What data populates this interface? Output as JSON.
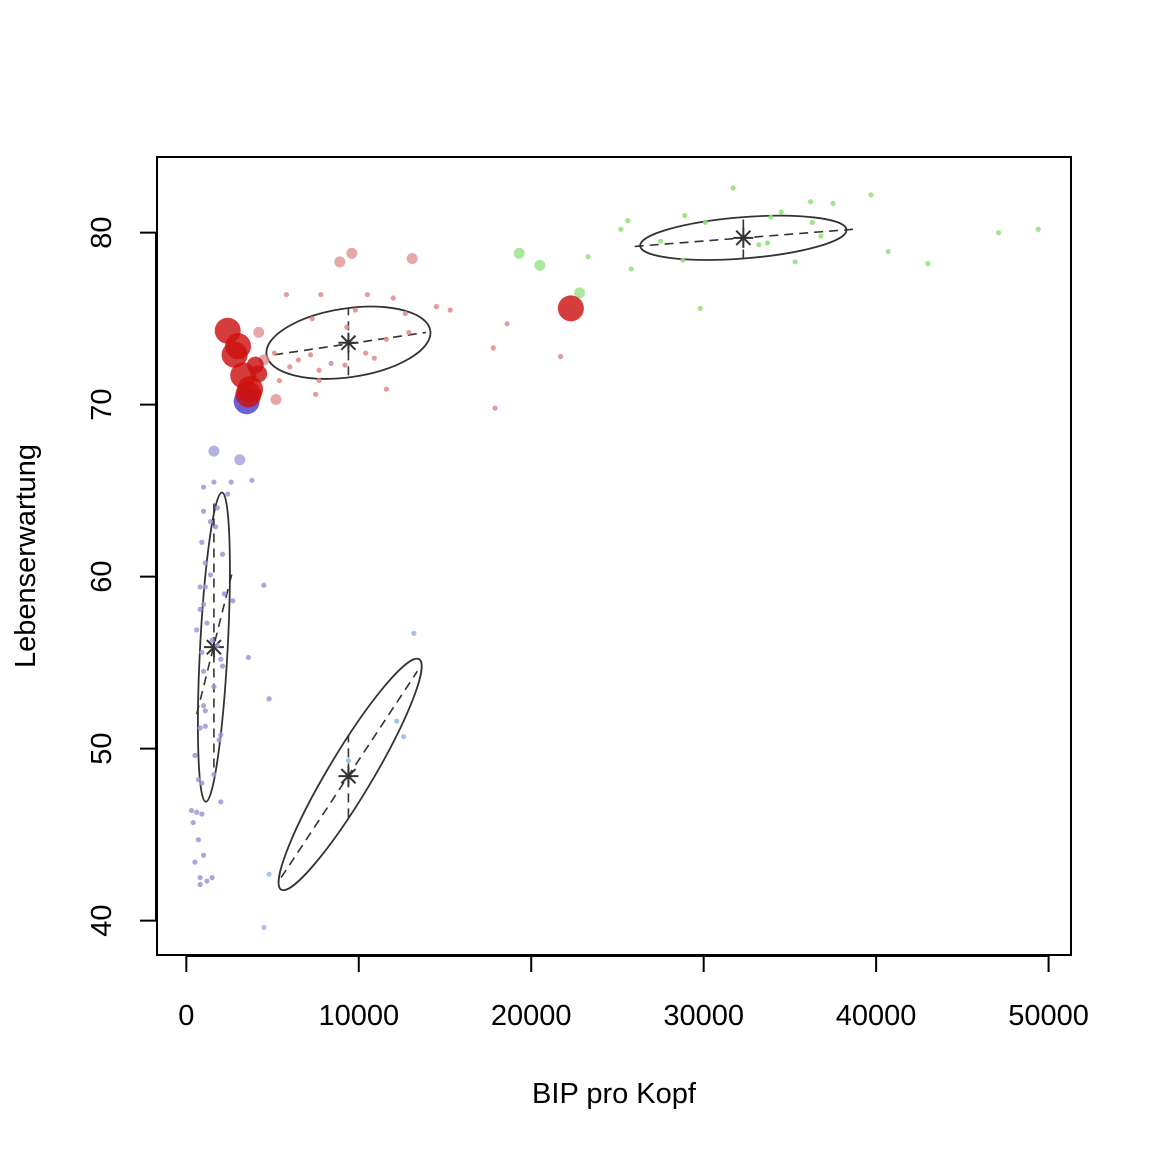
{
  "chart_data": {
    "type": "scatter",
    "title": "",
    "xlabel": "BIP pro Kopf",
    "ylabel": "Lebenserwartung",
    "xlim": [
      -1700,
      51300
    ],
    "ylim": [
      38,
      84.4
    ],
    "x_ticks": [
      0,
      10000,
      20000,
      30000,
      40000,
      50000
    ],
    "x_tick_labels": [
      "0",
      "10000",
      "20000",
      "30000",
      "40000",
      "50000"
    ],
    "y_ticks": [
      40,
      50,
      60,
      70,
      80
    ],
    "y_tick_labels": [
      "40",
      "50",
      "60",
      "70",
      "80"
    ],
    "grid": false,
    "legend": "none",
    "groups": [
      {
        "color": "#9b98d8",
        "big_color": "#4a3ec8",
        "points": [
          {
            "x": 3500,
            "y": 70.2,
            "s": 3
          },
          {
            "x": 1600,
            "y": 67.3,
            "s": 1
          },
          {
            "x": 3100,
            "y": 66.8,
            "s": 1
          },
          {
            "x": 1000,
            "y": 65.2,
            "s": 0
          },
          {
            "x": 1600,
            "y": 65.5,
            "s": 0
          },
          {
            "x": 2600,
            "y": 65.5,
            "s": 0
          },
          {
            "x": 3800,
            "y": 65.6,
            "s": 0
          },
          {
            "x": 2400,
            "y": 64.8,
            "s": 0
          },
          {
            "x": 1000,
            "y": 63.8,
            "s": 0
          },
          {
            "x": 1800,
            "y": 64.0,
            "s": 0
          },
          {
            "x": 1400,
            "y": 63.2,
            "s": 0
          },
          {
            "x": 1700,
            "y": 62.9,
            "s": 0
          },
          {
            "x": 900,
            "y": 62.0,
            "s": 0
          },
          {
            "x": 2100,
            "y": 61.3,
            "s": 0
          },
          {
            "x": 1100,
            "y": 60.8,
            "s": 0
          },
          {
            "x": 1400,
            "y": 60.1,
            "s": 0
          },
          {
            "x": 800,
            "y": 59.4,
            "s": 0
          },
          {
            "x": 1100,
            "y": 59.4,
            "s": 0
          },
          {
            "x": 2200,
            "y": 59.0,
            "s": 0
          },
          {
            "x": 4500,
            "y": 59.5,
            "s": 0
          },
          {
            "x": 800,
            "y": 58.1,
            "s": 0
          },
          {
            "x": 1000,
            "y": 58.4,
            "s": 0
          },
          {
            "x": 2700,
            "y": 58.6,
            "s": 0
          },
          {
            "x": 1200,
            "y": 57.3,
            "s": 0
          },
          {
            "x": 600,
            "y": 56.9,
            "s": 0
          },
          {
            "x": 1500,
            "y": 56.3,
            "s": 0
          },
          {
            "x": 1800,
            "y": 56.0,
            "s": 0
          },
          {
            "x": 900,
            "y": 55.6,
            "s": 0
          },
          {
            "x": 3600,
            "y": 55.3,
            "s": 0
          },
          {
            "x": 2000,
            "y": 55.2,
            "s": 0
          },
          {
            "x": 1000,
            "y": 54.5,
            "s": 0
          },
          {
            "x": 2100,
            "y": 54.8,
            "s": 0
          },
          {
            "x": 1600,
            "y": 53.6,
            "s": 0
          },
          {
            "x": 4800,
            "y": 52.9,
            "s": 0
          },
          {
            "x": 1000,
            "y": 52.5,
            "s": 0
          },
          {
            "x": 1100,
            "y": 52.2,
            "s": 0
          },
          {
            "x": 800,
            "y": 51.2,
            "s": 0
          },
          {
            "x": 1100,
            "y": 51.3,
            "s": 0
          },
          {
            "x": 1900,
            "y": 50.5,
            "s": 0
          },
          {
            "x": 2000,
            "y": 50.8,
            "s": 0
          },
          {
            "x": 500,
            "y": 49.6,
            "s": 0
          },
          {
            "x": 1600,
            "y": 48.5,
            "s": 0
          },
          {
            "x": 700,
            "y": 48.2,
            "s": 0
          },
          {
            "x": 900,
            "y": 48.0,
            "s": 0
          },
          {
            "x": 2000,
            "y": 46.9,
            "s": 0
          },
          {
            "x": 300,
            "y": 46.4,
            "s": 0
          },
          {
            "x": 600,
            "y": 46.3,
            "s": 0
          },
          {
            "x": 900,
            "y": 46.2,
            "s": 0
          },
          {
            "x": 400,
            "y": 45.7,
            "s": 0
          },
          {
            "x": 700,
            "y": 44.7,
            "s": 0
          },
          {
            "x": 1000,
            "y": 43.8,
            "s": 0
          },
          {
            "x": 500,
            "y": 43.4,
            "s": 0
          },
          {
            "x": 800,
            "y": 42.5,
            "s": 0
          },
          {
            "x": 1200,
            "y": 42.3,
            "s": 0
          },
          {
            "x": 1500,
            "y": 42.5,
            "s": 0
          },
          {
            "x": 800,
            "y": 42.1,
            "s": 0
          }
        ]
      },
      {
        "color": "#99b8e8",
        "big_color": "#3a6ed0",
        "points": [
          {
            "x": 13200,
            "y": 56.7,
            "s": 0
          },
          {
            "x": 12200,
            "y": 51.6,
            "s": 0
          },
          {
            "x": 12600,
            "y": 50.7,
            "s": 0
          },
          {
            "x": 9400,
            "y": 49.3,
            "s": 0
          },
          {
            "x": 4800,
            "y": 42.7,
            "s": 0
          },
          {
            "x": 4500,
            "y": 39.6,
            "s": 0
          }
        ]
      },
      {
        "color": "#e08a8a",
        "big_color": "#cc1111",
        "points": [
          {
            "x": 2400,
            "y": 74.3,
            "s": 3
          },
          {
            "x": 3000,
            "y": 73.4,
            "s": 3
          },
          {
            "x": 2800,
            "y": 72.9,
            "s": 3
          },
          {
            "x": 3300,
            "y": 71.7,
            "s": 3
          },
          {
            "x": 3700,
            "y": 70.9,
            "s": 3
          },
          {
            "x": 3600,
            "y": 70.6,
            "s": 3
          },
          {
            "x": 22300,
            "y": 75.6,
            "s": 3
          },
          {
            "x": 4000,
            "y": 72.3,
            "s": 2
          },
          {
            "x": 4200,
            "y": 71.8,
            "s": 2
          },
          {
            "x": 4200,
            "y": 74.2,
            "s": 1
          },
          {
            "x": 9600,
            "y": 78.8,
            "s": 1
          },
          {
            "x": 13100,
            "y": 78.5,
            "s": 1
          },
          {
            "x": 4500,
            "y": 72.6,
            "s": 1
          },
          {
            "x": 5200,
            "y": 70.3,
            "s": 1
          },
          {
            "x": 8900,
            "y": 78.3,
            "s": 1
          },
          {
            "x": 5800,
            "y": 76.4,
            "s": 0
          },
          {
            "x": 7800,
            "y": 76.4,
            "s": 0
          },
          {
            "x": 10500,
            "y": 76.4,
            "s": 0
          },
          {
            "x": 12000,
            "y": 76.2,
            "s": 0
          },
          {
            "x": 14500,
            "y": 75.7,
            "s": 0
          },
          {
            "x": 15300,
            "y": 75.5,
            "s": 0
          },
          {
            "x": 18600,
            "y": 74.7,
            "s": 0
          },
          {
            "x": 7300,
            "y": 75.0,
            "s": 0
          },
          {
            "x": 9800,
            "y": 75.5,
            "s": 0
          },
          {
            "x": 12700,
            "y": 75.3,
            "s": 0
          },
          {
            "x": 9300,
            "y": 74.5,
            "s": 0
          },
          {
            "x": 12900,
            "y": 74.2,
            "s": 0
          },
          {
            "x": 11600,
            "y": 73.8,
            "s": 0
          },
          {
            "x": 17800,
            "y": 73.3,
            "s": 0
          },
          {
            "x": 7200,
            "y": 72.9,
            "s": 0
          },
          {
            "x": 10400,
            "y": 73.0,
            "s": 0
          },
          {
            "x": 6500,
            "y": 72.6,
            "s": 0
          },
          {
            "x": 8400,
            "y": 72.4,
            "s": 0
          },
          {
            "x": 10900,
            "y": 72.7,
            "s": 0
          },
          {
            "x": 21700,
            "y": 72.8,
            "s": 0
          },
          {
            "x": 6000,
            "y": 72.2,
            "s": 0
          },
          {
            "x": 7700,
            "y": 72.0,
            "s": 0
          },
          {
            "x": 9200,
            "y": 72.3,
            "s": 0
          },
          {
            "x": 5400,
            "y": 71.4,
            "s": 0
          },
          {
            "x": 7700,
            "y": 71.4,
            "s": 0
          },
          {
            "x": 11600,
            "y": 70.9,
            "s": 0
          },
          {
            "x": 7500,
            "y": 70.6,
            "s": 0
          },
          {
            "x": 17900,
            "y": 69.8,
            "s": 0
          },
          {
            "x": 5100,
            "y": 73.0,
            "s": 0
          }
        ]
      },
      {
        "color": "#8ee07a",
        "big_color": "#33aa22",
        "points": [
          {
            "x": 22800,
            "y": 76.5,
            "s": 1
          },
          {
            "x": 19300,
            "y": 78.8,
            "s": 1
          },
          {
            "x": 20500,
            "y": 78.1,
            "s": 1
          },
          {
            "x": 23300,
            "y": 78.6,
            "s": 0
          },
          {
            "x": 25800,
            "y": 77.9,
            "s": 0
          },
          {
            "x": 31700,
            "y": 82.6,
            "s": 0
          },
          {
            "x": 39700,
            "y": 82.2,
            "s": 0
          },
          {
            "x": 36200,
            "y": 81.8,
            "s": 0
          },
          {
            "x": 37500,
            "y": 81.7,
            "s": 0
          },
          {
            "x": 34500,
            "y": 81.2,
            "s": 0
          },
          {
            "x": 28900,
            "y": 81.0,
            "s": 0
          },
          {
            "x": 30100,
            "y": 80.6,
            "s": 0
          },
          {
            "x": 25600,
            "y": 80.7,
            "s": 0
          },
          {
            "x": 33900,
            "y": 80.9,
            "s": 0
          },
          {
            "x": 36300,
            "y": 80.6,
            "s": 0
          },
          {
            "x": 25200,
            "y": 80.2,
            "s": 0
          },
          {
            "x": 47100,
            "y": 80.0,
            "s": 0
          },
          {
            "x": 49400,
            "y": 80.2,
            "s": 0
          },
          {
            "x": 36800,
            "y": 79.8,
            "s": 0
          },
          {
            "x": 27500,
            "y": 79.5,
            "s": 0
          },
          {
            "x": 33200,
            "y": 79.3,
            "s": 0
          },
          {
            "x": 33700,
            "y": 79.4,
            "s": 0
          },
          {
            "x": 40700,
            "y": 78.9,
            "s": 0
          },
          {
            "x": 28800,
            "y": 78.4,
            "s": 0
          },
          {
            "x": 35300,
            "y": 78.3,
            "s": 0
          },
          {
            "x": 43000,
            "y": 78.2,
            "s": 0
          },
          {
            "x": 29800,
            "y": 75.6,
            "s": 0
          }
        ]
      }
    ],
    "ellipses": [
      {
        "cx": 1600,
        "cy": 55.9,
        "rx": 800,
        "ry": 9.0,
        "v_up": 8.5,
        "v_down": 7.0,
        "d1": [
          600,
          52.0
        ],
        "d2": [
          2700,
          60.4
        ]
      },
      {
        "cx": 9400,
        "cy": 48.4,
        "rx": 1000,
        "ry": 3.8,
        "v_up": 2.4,
        "v_down": 2.4,
        "d1": [
          5500,
          42.5
        ],
        "d2": [
          13400,
          54.5
        ],
        "e1": [
          5500,
          41.8
        ],
        "e2": [
          13500,
          55.2
        ]
      },
      {
        "cx": 9400,
        "cy": 73.6,
        "rx": 4800,
        "ry": 2.0,
        "v_up": 2.0,
        "v_down": 1.9,
        "d1": [
          5100,
          72.9
        ],
        "d2": [
          13900,
          74.2
        ]
      },
      {
        "cx": 32300,
        "cy": 79.7,
        "rx": 6000,
        "ry": 1.2,
        "v_up": 1.3,
        "v_down": 1.2,
        "d1": [
          26000,
          79.2
        ],
        "d2": [
          38700,
          80.2
        ]
      }
    ]
  }
}
